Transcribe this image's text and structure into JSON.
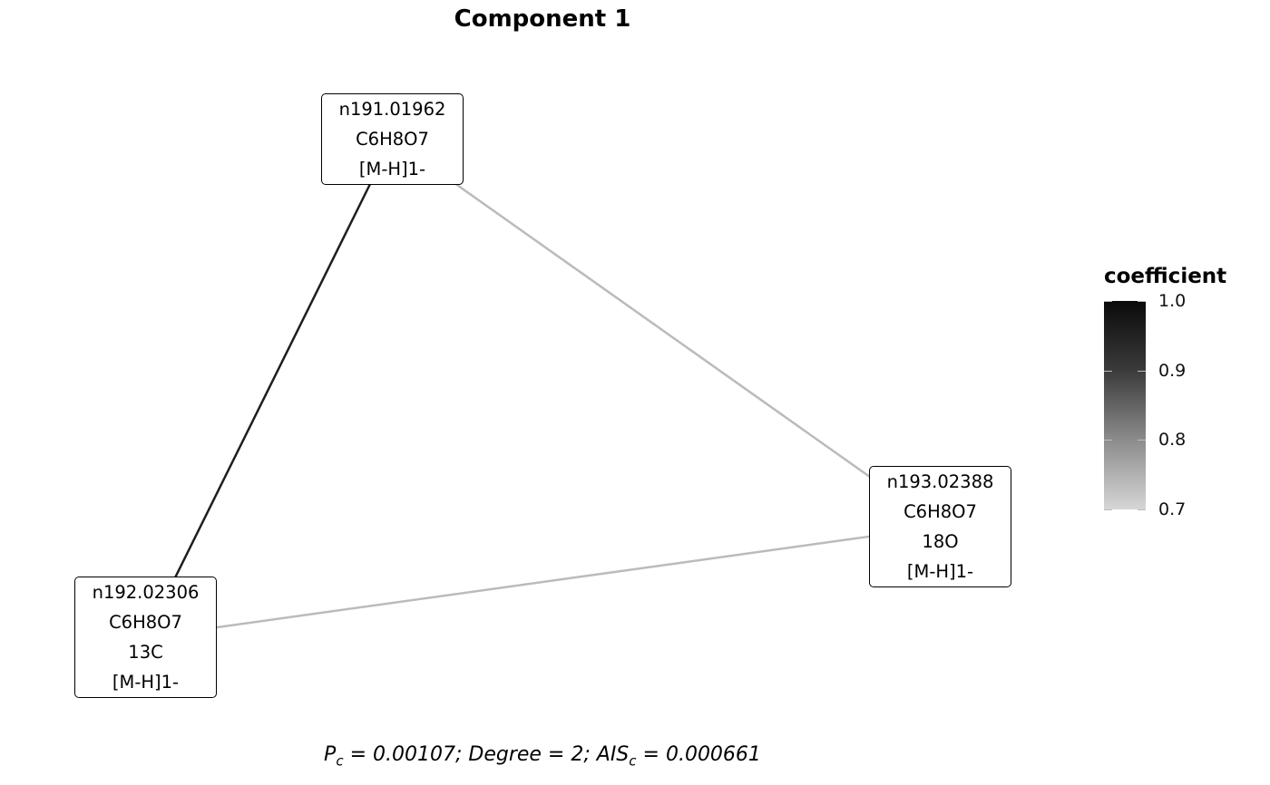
{
  "title": "Component 1",
  "nodes": [
    {
      "id": "n191.01962",
      "lines": [
        "n191.01962",
        "C6H8O7",
        "[M-H]1-"
      ]
    },
    {
      "id": "n192.02306",
      "lines": [
        "n192.02306",
        "C6H8O7",
        "13C",
        "[M-H]1-"
      ]
    },
    {
      "id": "n193.02388",
      "lines": [
        "n193.02388",
        "C6H8O7",
        "18O",
        "[M-H]1-"
      ]
    }
  ],
  "edges": [
    {
      "source": "n191.01962",
      "target": "n192.02306",
      "coefficient": 0.97
    },
    {
      "source": "n191.01962",
      "target": "n193.02388",
      "coefficient": 0.74
    },
    {
      "source": "n192.02306",
      "target": "n193.02388",
      "coefficient": 0.74
    }
  ],
  "legend": {
    "title": "coefficient",
    "ticks": [
      "1.0",
      "0.9",
      "0.8",
      "0.7"
    ],
    "range": [
      0.7,
      1.0
    ],
    "colors": {
      "high": "#0a0a0a",
      "low": "#d6d6d6"
    }
  },
  "caption": {
    "pc_symbol": "P",
    "pc_sub": "c",
    "pc_value": " = 0.00107; Degree = 2; ",
    "ais_symbol": "AIS",
    "ais_sub": "c",
    "ais_value": " = 0.000661"
  }
}
